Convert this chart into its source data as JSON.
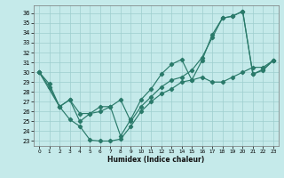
{
  "xlabel": "Humidex (Indice chaleur)",
  "xlim": [
    -0.5,
    23.5
  ],
  "ylim": [
    22.5,
    36.8
  ],
  "yticks": [
    23,
    24,
    25,
    26,
    27,
    28,
    29,
    30,
    31,
    32,
    33,
    34,
    35,
    36
  ],
  "xticks": [
    0,
    1,
    2,
    3,
    4,
    5,
    6,
    7,
    8,
    9,
    10,
    11,
    12,
    13,
    14,
    15,
    16,
    17,
    18,
    19,
    20,
    21,
    22,
    23
  ],
  "bg_color": "#c5eaea",
  "grid_color": "#9ecece",
  "line_color": "#2a7a6a",
  "s1_x": [
    0,
    1,
    2,
    3,
    4,
    5,
    6,
    7,
    8,
    9,
    10,
    11,
    12,
    13,
    14,
    15,
    16,
    17,
    18,
    19,
    20,
    21,
    22,
    23
  ],
  "s1_y": [
    30.0,
    28.5,
    26.5,
    25.2,
    24.5,
    23.1,
    23.0,
    23.0,
    23.2,
    24.5,
    26.0,
    27.0,
    27.8,
    28.3,
    29.0,
    29.2,
    31.2,
    33.8,
    35.5,
    35.7,
    36.2,
    29.8,
    30.2,
    31.2
  ],
  "s2_x": [
    0,
    1,
    2,
    3,
    4,
    5,
    6,
    7,
    8,
    9,
    10,
    11,
    12,
    13,
    14,
    15,
    16,
    17,
    18,
    19,
    20,
    21,
    22,
    23
  ],
  "s2_y": [
    30.0,
    28.8,
    26.5,
    27.2,
    25.8,
    25.8,
    26.0,
    26.5,
    27.2,
    25.0,
    26.5,
    27.5,
    28.5,
    29.2,
    29.5,
    30.2,
    31.5,
    33.5,
    35.5,
    35.7,
    36.2,
    29.8,
    30.3,
    31.2
  ],
  "s3_x": [
    0,
    2,
    3,
    4,
    5,
    6,
    7,
    8,
    9,
    10,
    11,
    12,
    13,
    14,
    15,
    16,
    17,
    18,
    19,
    20,
    21,
    22,
    23
  ],
  "s3_y": [
    30.0,
    26.5,
    27.2,
    25.0,
    25.8,
    26.5,
    26.5,
    23.5,
    25.2,
    27.2,
    28.3,
    29.8,
    30.8,
    31.3,
    29.2,
    29.5,
    29.0,
    29.0,
    29.5,
    30.0,
    30.5,
    30.5,
    31.2
  ]
}
